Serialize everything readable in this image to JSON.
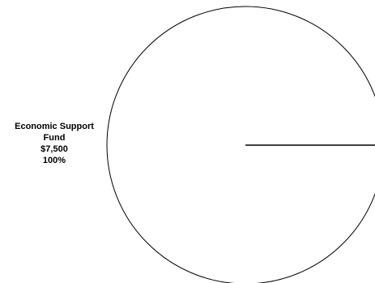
{
  "chart_data": {
    "type": "pie",
    "title": "",
    "slices": [
      {
        "label": "Economic Support Fund",
        "value": 7500,
        "value_label": "$7,500",
        "percent": 100,
        "percent_label": "100%",
        "fill": "#ffffff"
      }
    ],
    "start_angle_deg": 0,
    "legend": "none",
    "stroke_color": "#000000",
    "background": "#ffffff"
  }
}
